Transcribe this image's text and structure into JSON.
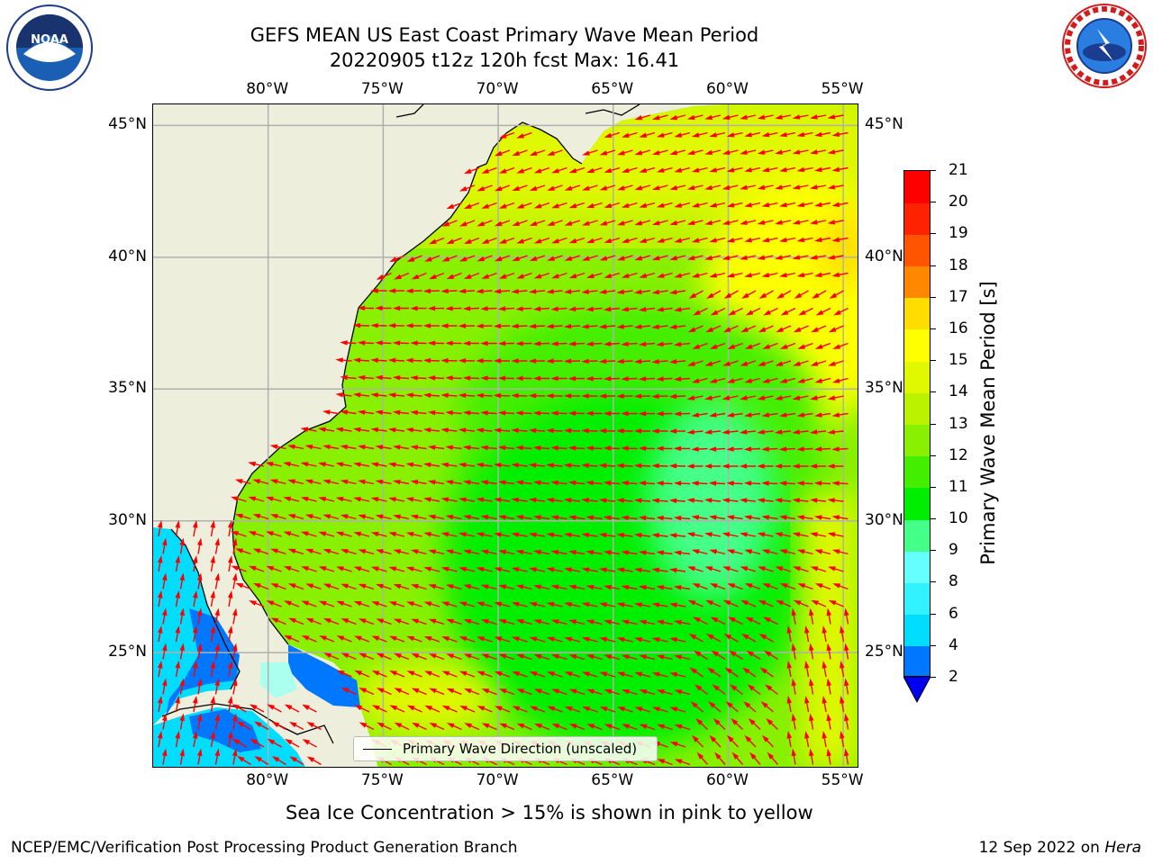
{
  "title_line1": "GEFS MEAN US East Coast Primary Wave Mean Period",
  "title_line2": "20220905 t12z 120h fcst   Max: 16.41",
  "map": {
    "lon_labels": [
      "80°W",
      "75°W",
      "70°W",
      "65°W",
      "60°W",
      "55°W"
    ],
    "lat_labels": [
      "45°N",
      "40°N",
      "35°N",
      "30°N",
      "25°N"
    ],
    "lon_values": [
      -80,
      -75,
      -70,
      -65,
      -60,
      -55
    ],
    "lat_values": [
      45,
      40,
      35,
      30,
      25
    ],
    "extent": {
      "lon_min": -85,
      "lon_max": -54.3,
      "lat_min": 20.6,
      "lat_max": 45.8
    },
    "legend_label": "Primary Wave Direction (unscaled)",
    "land_color": "#eeeedd",
    "arrow_color": "#ff0000"
  },
  "colorbar": {
    "label": "Primary Wave Mean Period [s]",
    "ticks": [
      "21",
      "20",
      "19",
      "18",
      "17",
      "16",
      "15",
      "14",
      "13",
      "12",
      "11",
      "10",
      "9",
      "8",
      "6",
      "4",
      "2"
    ],
    "colors": [
      "#0000ee",
      "#0077ff",
      "#00ddff",
      "#33f2ff",
      "#66ffff",
      "#aaffee",
      "#44ff88",
      "#00ee00",
      "#44ee00",
      "#88f000",
      "#bbf200",
      "#e0f800",
      "#ffff00",
      "#ffdd00",
      "#ffbb00",
      "#ff8800",
      "#ff5500",
      "#ff2200",
      "#ff0000"
    ]
  },
  "note": "Sea Ice Concentration > 15% is shown in pink to yellow",
  "footer_left": "NCEP/EMC/Verification Post Processing Product Generation Branch",
  "footer_date": "12 Sep 2022 on ",
  "footer_machine": "Hera"
}
